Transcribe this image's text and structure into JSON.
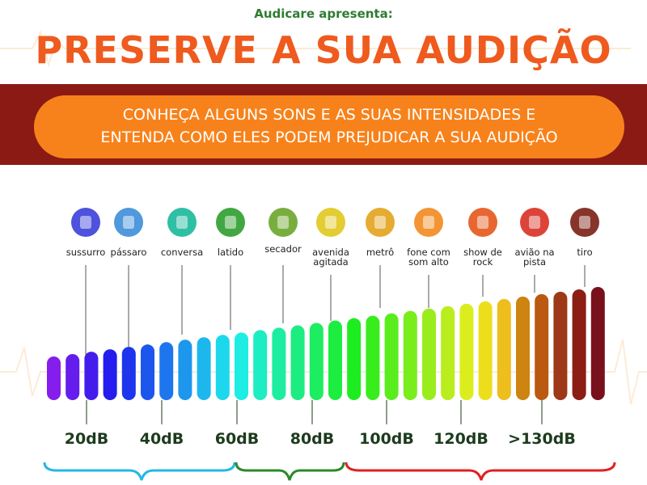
{
  "header": {
    "kicker": "Audicare apresenta:",
    "title": "PRESERVE A SUA AUDIÇÃO"
  },
  "banner": {
    "lines": [
      "CONHEÇA ALGUNS SONS E AS SUAS INTENSIDADES E",
      "ENTENDA COMO ELES PODEM PREJUDICAR A SUA AUDIÇÃO"
    ]
  },
  "sounds": [
    {
      "label": [
        "sussurro"
      ]
    },
    {
      "label": [
        "pássaro"
      ]
    },
    {
      "label": [
        "conversa"
      ]
    },
    {
      "label": [
        "latido"
      ]
    },
    {
      "label": [
        "secador"
      ]
    },
    {
      "label": [
        "avenida",
        "agitada"
      ]
    },
    {
      "label": [
        "metrô"
      ]
    },
    {
      "label": [
        "fone com",
        "som alto"
      ]
    },
    {
      "label": [
        "show de",
        "rock"
      ]
    },
    {
      "label": [
        "avião na",
        "pista"
      ]
    },
    {
      "label": [
        "tiro"
      ]
    }
  ],
  "levels": [
    "20dB",
    "40dB",
    "60dB",
    "80dB",
    "100dB",
    "120dB",
    ">130dB"
  ]
}
